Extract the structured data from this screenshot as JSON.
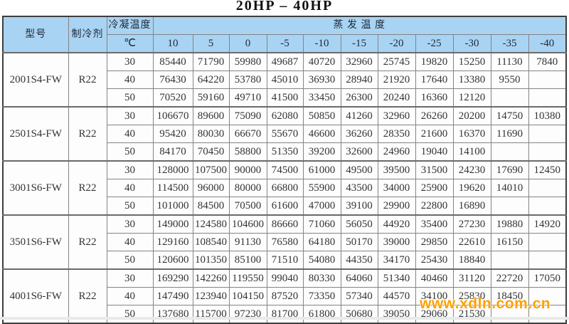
{
  "title": "20HP – 40HP",
  "watermark": {
    "text": "www.xdln.com.cn",
    "color": "#ffa000"
  },
  "colors": {
    "header_bg": "#a9d3f2",
    "cell_bg": "#fdfdfd",
    "border_inner": "#848484",
    "border_outer": "#3e3e3e",
    "watermark": "#ffa000"
  },
  "table": {
    "headers": {
      "model": "型号",
      "refrigerant": "制冷剂",
      "condensing": "冷凝温度",
      "condensing_unit": "℃",
      "evaporating": "蒸 发 温 度"
    },
    "evap_temps": [
      "10",
      "5",
      "0",
      "-5",
      "-10",
      "-15",
      "-20",
      "-25",
      "-30",
      "-35",
      "-40"
    ],
    "blocks": [
      {
        "model": "2001S4-FW",
        "refrigerant": "R22",
        "rows": [
          {
            "condensing": "30",
            "values": [
              "85440",
              "71790",
              "59980",
              "49687",
              "40720",
              "32960",
              "25745",
              "19820",
              "15250",
              "11130",
              "7840"
            ]
          },
          {
            "condensing": "40",
            "values": [
              "76430",
              "64220",
              "53780",
              "45010",
              "36930",
              "28940",
              "21920",
              "17640",
              "13380",
              "9550",
              ""
            ]
          },
          {
            "condensing": "50",
            "values": [
              "70520",
              "59160",
              "49710",
              "41500",
              "33450",
              "26300",
              "20240",
              "16360",
              "12120",
              "",
              ""
            ]
          }
        ]
      },
      {
        "model": "2501S4-FW",
        "refrigerant": "R22",
        "rows": [
          {
            "condensing": "30",
            "values": [
              "106670",
              "89600",
              "75090",
              "62080",
              "50850",
              "41260",
              "32960",
              "26260",
              "20200",
              "14750",
              "10380"
            ]
          },
          {
            "condensing": "40",
            "values": [
              "95420",
              "80030",
              "66670",
              "55670",
              "46600",
              "36260",
              "28350",
              "21600",
              "16370",
              "11690",
              ""
            ]
          },
          {
            "condensing": "50",
            "values": [
              "84170",
              "70450",
              "58800",
              "51350",
              "39200",
              "32600",
              "24960",
              "19040",
              "14100",
              "",
              ""
            ]
          }
        ]
      },
      {
        "model": "3001S6-FW",
        "refrigerant": "R22",
        "rows": [
          {
            "condensing": "30",
            "values": [
              "128000",
              "107500",
              "90000",
              "74500",
              "61000",
              "49500",
              "39500",
              "31500",
              "24230",
              "17690",
              "12450"
            ]
          },
          {
            "condensing": "40",
            "values": [
              "114500",
              "96000",
              "80000",
              "66800",
              "55900",
              "43500",
              "34000",
              "25900",
              "19620",
              "14010",
              ""
            ]
          },
          {
            "condensing": "50",
            "values": [
              "101000",
              "84500",
              "70500",
              "61600",
              "47000",
              "39100",
              "29900",
              "22800",
              "16890",
              "",
              ""
            ]
          }
        ]
      },
      {
        "model": "3501S6-FW",
        "refrigerant": "R22",
        "rows": [
          {
            "condensing": "30",
            "values": [
              "149000",
              "124580",
              "104600",
              "86660",
              "71060",
              "56050",
              "44920",
              "35400",
              "27230",
              "19880",
              "14920"
            ]
          },
          {
            "condensing": "40",
            "values": [
              "129160",
              "108540",
              "91130",
              "76580",
              "64180",
              "50170",
              "39000",
              "29850",
              "22610",
              "16150",
              ""
            ]
          },
          {
            "condensing": "50",
            "values": [
              "120600",
              "101350",
              "85100",
              "71510",
              "54080",
              "44350",
              "34170",
              "25430",
              "18840",
              "",
              ""
            ]
          }
        ]
      },
      {
        "model": "4001S6-FW",
        "refrigerant": "R22",
        "rows": [
          {
            "condensing": "30",
            "values": [
              "169290",
              "142260",
              "119550",
              "99040",
              "80330",
              "64060",
              "51340",
              "40460",
              "31120",
              "22720",
              "17050"
            ]
          },
          {
            "condensing": "40",
            "values": [
              "147490",
              "123940",
              "104150",
              "87520",
              "73350",
              "57340",
              "44570",
              "34100",
              "25830",
              "18450",
              ""
            ]
          },
          {
            "condensing": "50",
            "values": [
              "137680",
              "115700",
              "97230",
              "81700",
              "61800",
              "50680",
              "39050",
              "29060",
              "21530",
              "",
              ""
            ]
          }
        ]
      }
    ]
  }
}
